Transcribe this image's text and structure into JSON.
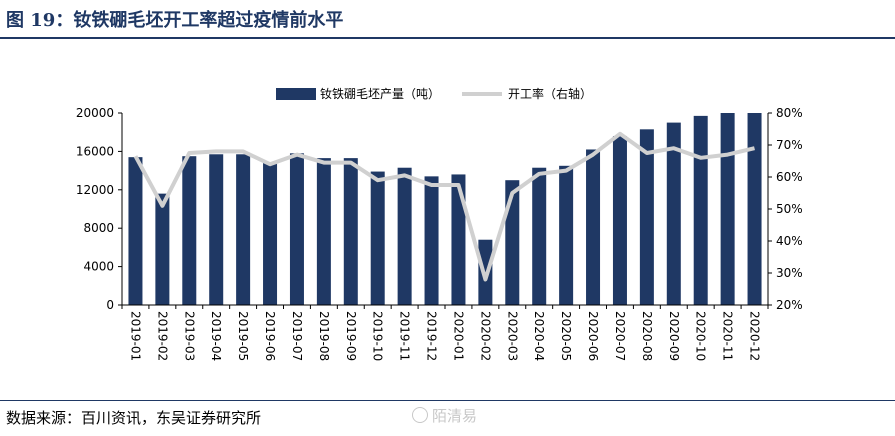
{
  "header": {
    "title": "图 19：钕铁硼毛坯开工率超过疫情前水平"
  },
  "footer": {
    "source": "数据来源：百川资讯，东吴证券研究所",
    "watermark": "陌清易"
  },
  "colors": {
    "bar": "#1f3864",
    "line": "#d0d0d0",
    "title": "#1f3864"
  },
  "chart_data": {
    "type": "bar",
    "title": "图 19：钕铁硼毛坯开工率超过疫情前水平",
    "xlabel": "",
    "ylabel": "",
    "categories": [
      "2019-01",
      "2019-02",
      "2019-03",
      "2019-04",
      "2019-05",
      "2019-06",
      "2019-07",
      "2019-08",
      "2019-09",
      "2019-10",
      "2019-11",
      "2019-12",
      "2020-01",
      "2020-02",
      "2020-03",
      "2020-04",
      "2020-05",
      "2020-06",
      "2020-07",
      "2020-08",
      "2020-09",
      "2020-10",
      "2020-11",
      "2020-12"
    ],
    "series": [
      {
        "name": "钕铁硼毛坯产量（吨）",
        "type": "bar",
        "axis": "left",
        "values": [
          15400,
          11600,
          15500,
          15700,
          15700,
          14800,
          15800,
          15300,
          15300,
          13900,
          14300,
          13400,
          13600,
          6800,
          13000,
          14300,
          14500,
          16200,
          17600,
          18300,
          19000,
          19700,
          20000,
          20000
        ]
      },
      {
        "name": "开工率（右轴）",
        "type": "line",
        "axis": "right",
        "values": [
          66.5,
          51,
          67.5,
          68,
          68,
          64,
          67,
          64.5,
          64.5,
          59,
          60.5,
          57.5,
          57.5,
          28,
          55,
          61,
          62,
          67,
          73.5,
          67.5,
          69,
          66,
          67,
          69
        ]
      }
    ],
    "ylim": [
      0,
      20000
    ],
    "yticks": [
      "0",
      "4000",
      "8000",
      "12000",
      "16000",
      "20000"
    ],
    "y2lim": [
      20,
      80
    ],
    "y2ticks": [
      "20%",
      "30%",
      "40%",
      "50%",
      "60%",
      "70%",
      "80%"
    ],
    "legend": "top-center",
    "grid": false
  }
}
